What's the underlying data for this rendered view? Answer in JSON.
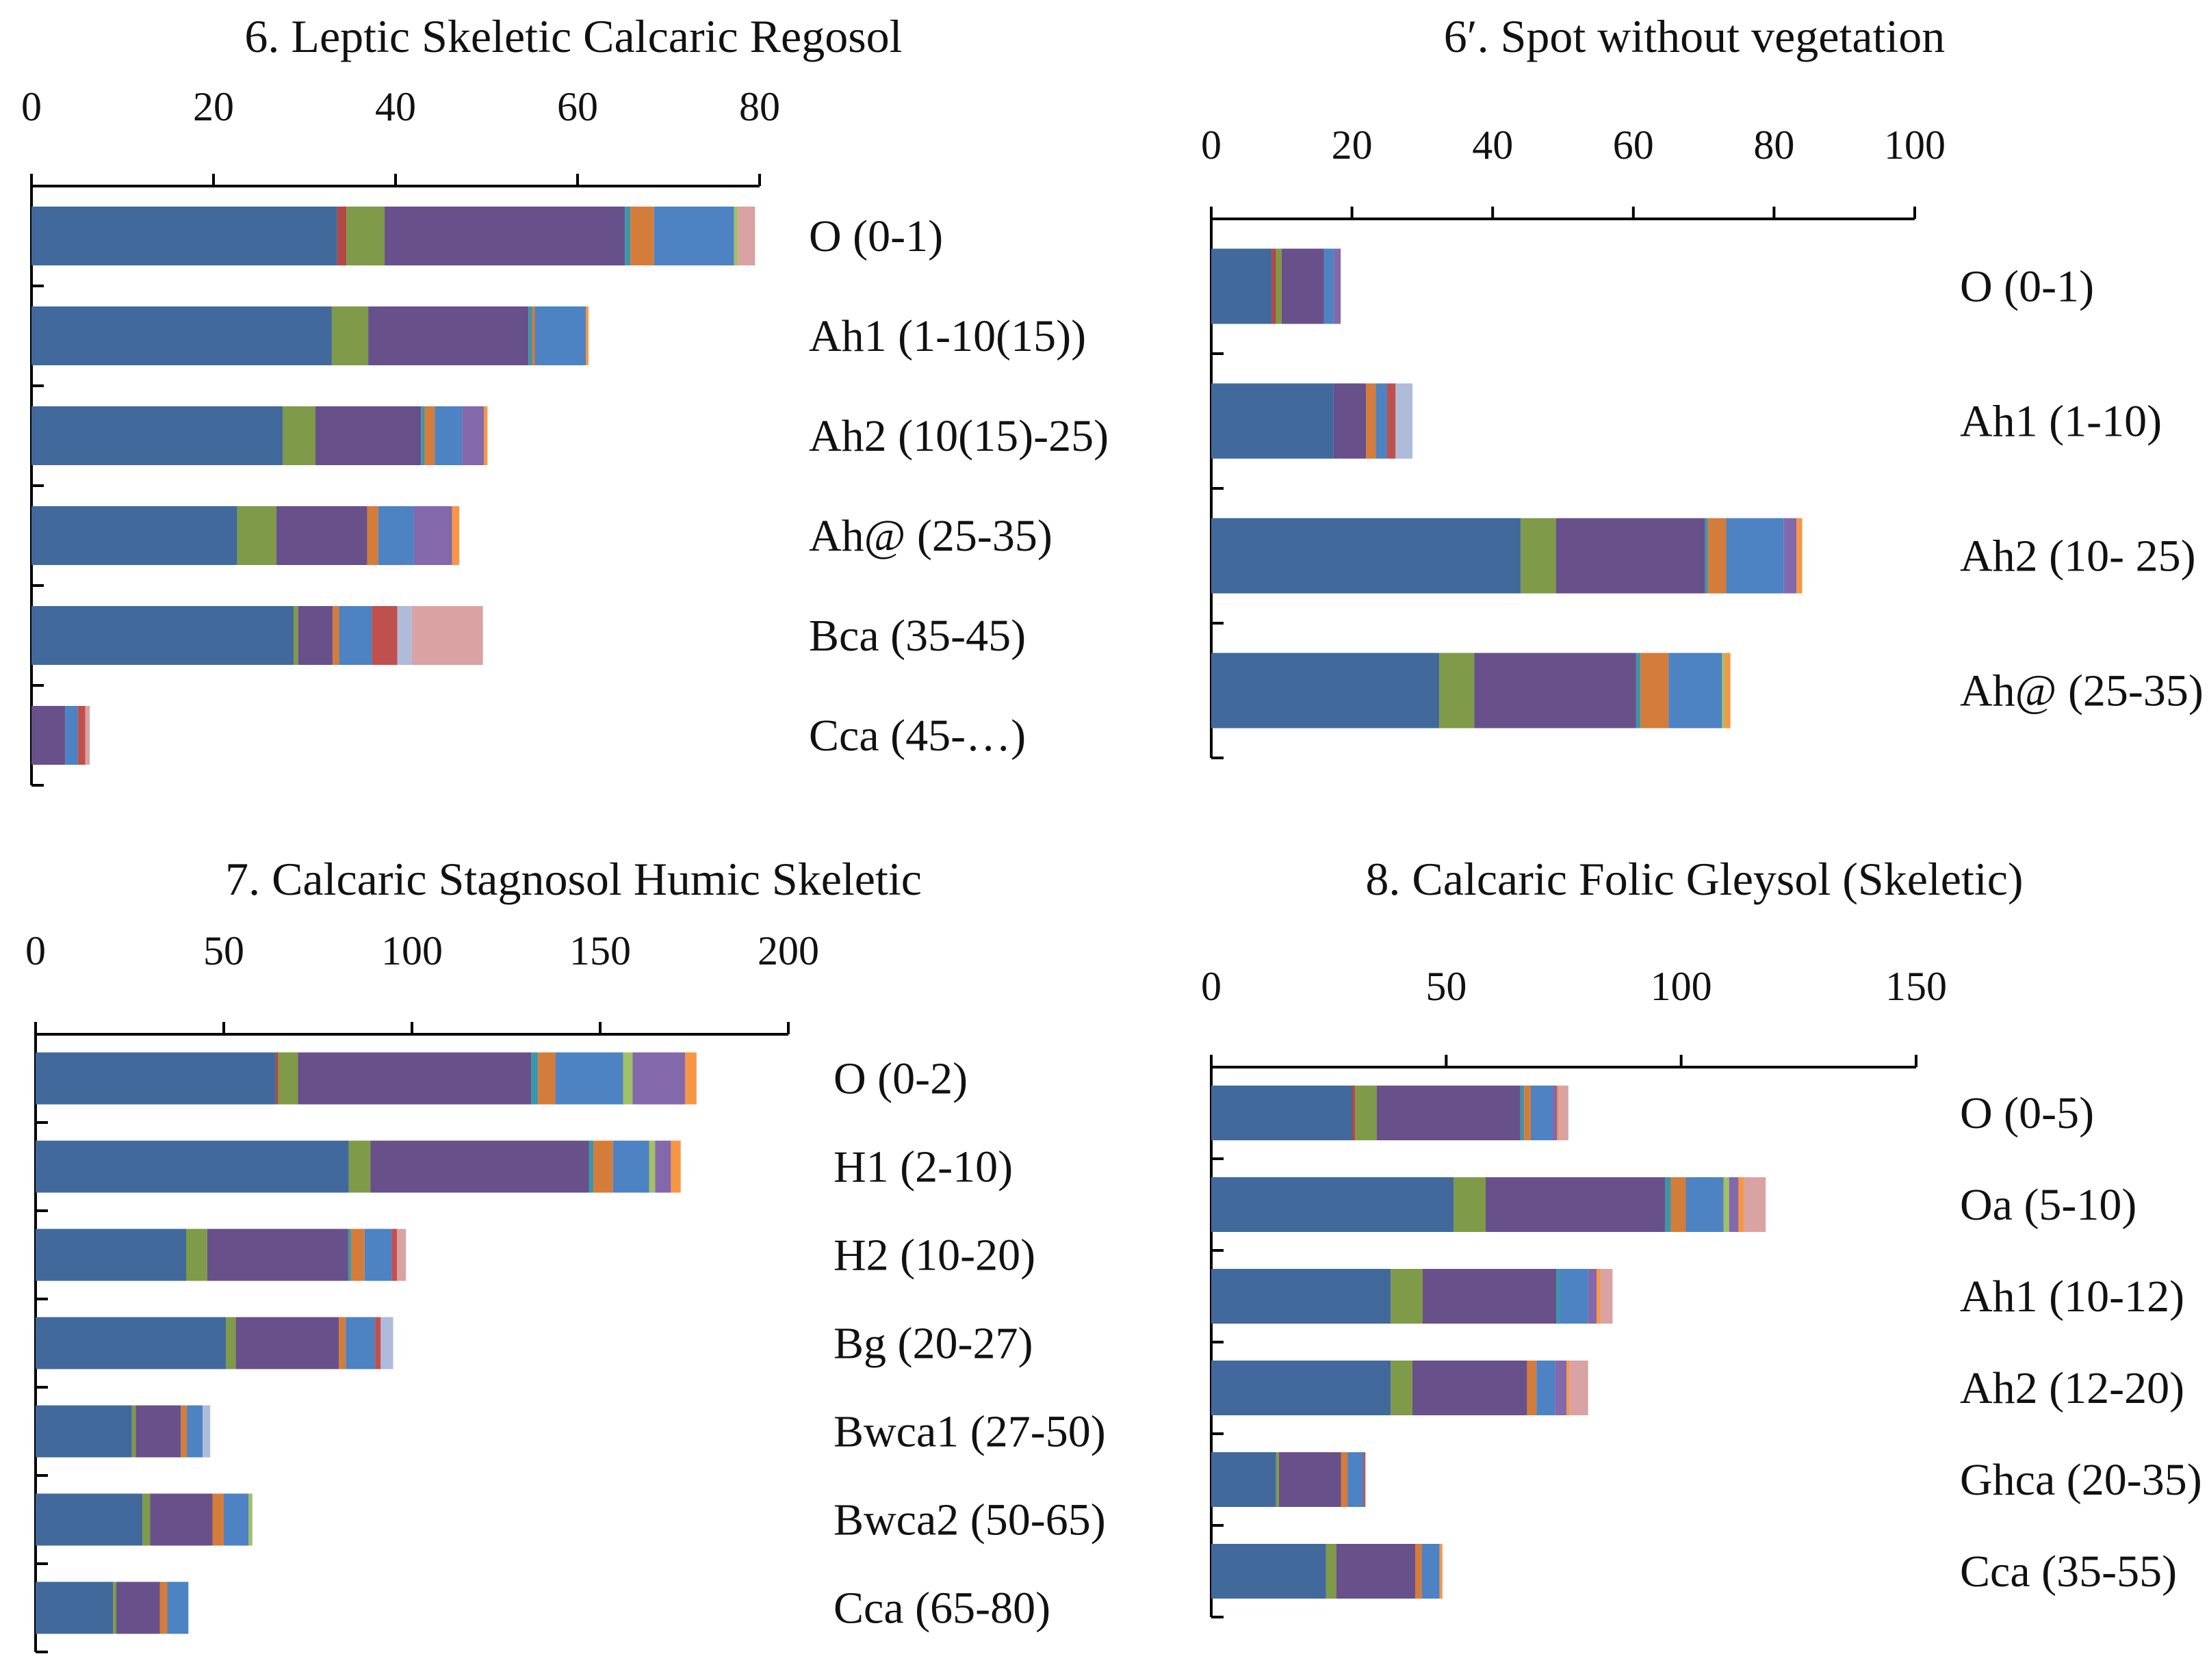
{
  "colors": [
    "#41699b",
    "#b34744",
    "#7f9a48",
    "#68508a",
    "#3d95a9",
    "#d47c3a",
    "#4d82c3",
    "#a2c066",
    "#8468ac",
    "#c0504d",
    "#f79645",
    "#aebcd9",
    "#d9a3a3"
  ],
  "chart_data": [
    {
      "type": "bar",
      "orientation": "horizontal-stacked",
      "title": "6. Leptic Skeletic Calcaric Regosol",
      "xlim": [
        0,
        80
      ],
      "ticks": [
        0,
        20,
        40,
        60,
        80
      ],
      "tick_labels": [
        "0",
        "20",
        "40",
        "60",
        "80"
      ],
      "categories": [
        "O (0-1)",
        "Ah1 (1-10(15))",
        "Ah2 (10(15)-25)",
        "Ah@ (25-35)",
        "Bca (35-45)",
        "Cca (45-…)"
      ],
      "segments": [
        [
          33.6,
          1.0,
          4.2,
          26.4,
          0.6,
          2.6,
          8.8,
          0.4,
          0,
          0,
          0,
          0,
          1.9
        ],
        [
          33.0,
          0,
          4.0,
          17.6,
          0.4,
          0.3,
          5.6,
          0,
          0,
          0,
          0.3,
          0,
          0
        ],
        [
          27.6,
          0,
          3.6,
          11.6,
          0.4,
          1.1,
          3.0,
          0,
          2.4,
          0,
          0.4,
          0,
          0
        ],
        [
          22.6,
          0,
          4.3,
          10.0,
          0,
          1.2,
          3.9,
          0,
          4.2,
          0,
          0.8,
          0,
          0
        ],
        [
          28.8,
          0,
          0.5,
          3.8,
          0,
          0.7,
          3.6,
          0,
          0,
          2.8,
          0,
          1.6,
          7.8
        ],
        [
          0,
          0,
          0,
          3.7,
          0,
          0,
          1.4,
          0,
          0,
          0.8,
          0,
          0,
          0.5
        ]
      ]
    },
    {
      "type": "bar",
      "orientation": "horizontal-stacked",
      "title": "6′. Spot without vegetation",
      "xlim": [
        0,
        100
      ],
      "ticks": [
        0,
        20,
        40,
        60,
        80,
        100
      ],
      "tick_labels": [
        "0",
        "20",
        "40",
        "60",
        "80",
        "100"
      ],
      "categories": [
        "O (0-1)",
        "Ah1 (1-10)",
        "Ah2 (10- 25)",
        "Ah@ (25-35)"
      ],
      "segments": [
        [
          8.6,
          0.6,
          0.8,
          6.0,
          0,
          0,
          1.4,
          0,
          1.0,
          0,
          0,
          0,
          0
        ],
        [
          17.4,
          0,
          0,
          4.6,
          0,
          1.4,
          1.6,
          0,
          0,
          1.2,
          0,
          2.4,
          0
        ],
        [
          44.0,
          0,
          5.0,
          21.2,
          0.4,
          2.6,
          8.2,
          0,
          1.8,
          0,
          0.8,
          0,
          0
        ],
        [
          32.4,
          0,
          5.0,
          23.0,
          0.6,
          4.0,
          7.6,
          0.4,
          0,
          0,
          0.8,
          0,
          0
        ]
      ]
    },
    {
      "type": "bar",
      "orientation": "horizontal-stacked",
      "title": "7. Calcaric Stagnosol Humic Skeletic",
      "xlim": [
        0,
        200
      ],
      "ticks": [
        0,
        50,
        100,
        150,
        200
      ],
      "tick_labels": [
        "0",
        "50",
        "100",
        "150",
        "200"
      ],
      "categories": [
        "O (0-2)",
        "H1 (2-10)",
        "H2 (10-20)",
        "Bg (20-27)",
        "Bwca1 (27-50)",
        "Bwca2 (50-65)",
        "Cca (65-80)"
      ],
      "segments": [
        [
          63.8,
          0.7,
          5.2,
          62.0,
          1.8,
          4.6,
          18.0,
          2.5,
          14.0,
          0,
          3.0,
          0,
          0
        ],
        [
          83.2,
          0,
          5.8,
          58.0,
          1.2,
          5.2,
          9.6,
          1.6,
          4.2,
          0,
          2.6,
          0,
          0
        ],
        [
          40.0,
          0,
          5.6,
          37.4,
          0.8,
          3.6,
          7.2,
          0,
          0,
          1.4,
          0,
          0,
          2.4
        ],
        [
          50.6,
          0,
          2.6,
          27.4,
          0,
          1.8,
          7.8,
          0,
          0,
          1.5,
          0,
          3.3,
          0
        ],
        [
          25.6,
          0,
          1.0,
          12.0,
          0,
          1.6,
          4.2,
          0,
          0,
          0,
          0,
          2.0,
          0
        ],
        [
          28.4,
          0,
          2.0,
          16.6,
          0,
          3.0,
          6.6,
          1.0,
          0,
          0,
          0,
          0,
          0
        ],
        [
          20.6,
          0,
          0.8,
          11.6,
          0,
          2.0,
          5.6,
          0,
          0,
          0,
          0,
          0,
          0
        ]
      ]
    },
    {
      "type": "bar",
      "orientation": "horizontal-stacked",
      "title": "8. Calcaric Folic Gleysol (Skeletic)",
      "xlim": [
        0,
        150
      ],
      "ticks": [
        0,
        50,
        100,
        150
      ],
      "tick_labels": [
        "0",
        "50",
        "100",
        "150"
      ],
      "categories": [
        "O (0-5)",
        "Oa (5-10)",
        "Ah1 (10-12)",
        "Ah2 (12-20)",
        "Ghca (20-35)",
        "Cca (35-55)"
      ],
      "segments": [
        [
          30.0,
          0.6,
          4.6,
          30.6,
          0.8,
          1.4,
          4.6,
          0,
          1.0,
          0,
          0.4,
          0,
          2.0
        ],
        [
          51.6,
          0,
          6.8,
          38.2,
          1.2,
          3.2,
          8.0,
          1.2,
          2.0,
          0,
          1.2,
          0,
          4.6
        ],
        [
          38.2,
          0,
          6.8,
          28.4,
          0.8,
          0,
          6.0,
          0,
          1.8,
          0,
          0.8,
          0,
          2.6
        ],
        [
          38.2,
          0,
          4.6,
          24.4,
          0,
          2.0,
          4.0,
          0,
          2.4,
          0,
          0.6,
          0,
          4.0
        ],
        [
          13.8,
          0,
          0.6,
          13.2,
          0,
          1.4,
          3.4,
          0,
          0,
          0.4,
          0,
          0,
          0
        ],
        [
          24.4,
          0,
          2.2,
          16.8,
          0,
          1.4,
          3.8,
          0,
          0,
          0,
          0.6,
          0,
          0
        ]
      ]
    }
  ]
}
